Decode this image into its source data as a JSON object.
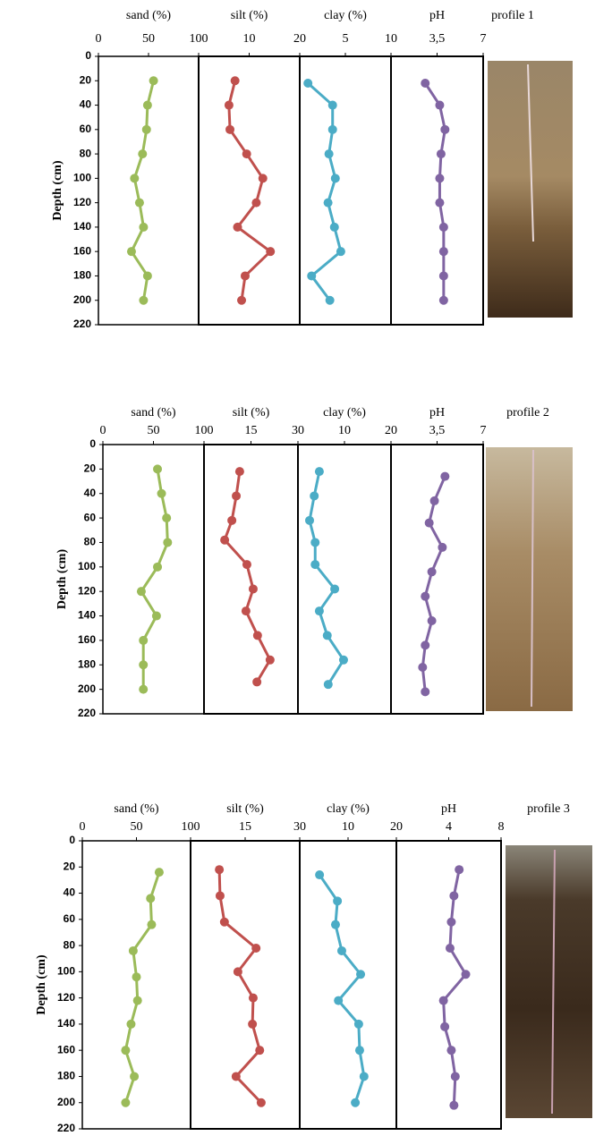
{
  "chart_data": [
    {
      "type": "line",
      "xlabel": "sand (%)",
      "ylabel": "Depth (cm)",
      "xlim": [
        0,
        100
      ],
      "xticks": [
        0,
        50,
        100
      ],
      "ylim": [
        0,
        220
      ],
      "yticks": [
        0,
        20,
        40,
        60,
        80,
        100,
        120,
        140,
        160,
        180,
        200,
        220
      ],
      "color": "#9bbb59",
      "y": [
        20,
        40,
        60,
        80,
        100,
        120,
        140,
        160,
        180,
        200
      ],
      "values": [
        55,
        49,
        48,
        44,
        36,
        41,
        45,
        33,
        49,
        45
      ]
    },
    {
      "type": "line",
      "xlabel": "silt (%)",
      "xlim": [
        0,
        20
      ],
      "xticks": [
        10,
        20
      ],
      "ylim": [
        0,
        220
      ],
      "color": "#c0504d",
      "y": [
        20,
        40,
        60,
        80,
        100,
        120,
        140,
        160,
        180,
        200
      ],
      "values": [
        7.2,
        6,
        6.2,
        9.5,
        12.7,
        11.4,
        7.7,
        14.2,
        9.2,
        8.5
      ]
    },
    {
      "type": "line",
      "xlabel": "clay (%)",
      "xlim": [
        0,
        10
      ],
      "xticks": [
        5,
        10
      ],
      "ylim": [
        0,
        220
      ],
      "color": "#4bacc6",
      "y": [
        22,
        40,
        60,
        80,
        100,
        120,
        140,
        160,
        180,
        200
      ],
      "values": [
        0.9,
        3.6,
        3.6,
        3.2,
        3.9,
        3.1,
        3.8,
        4.5,
        1.3,
        3.3
      ]
    },
    {
      "type": "line",
      "xlabel": "pH",
      "xlim": [
        0,
        7
      ],
      "xticks": [
        {
          "value": 3.5,
          "label": "3,5"
        },
        7
      ],
      "ylim": [
        0,
        220
      ],
      "color": "#8064a2",
      "y": [
        22,
        40,
        60,
        80,
        100,
        120,
        140,
        160,
        180,
        200
      ],
      "values": [
        2.6,
        3.7,
        4.1,
        3.8,
        3.7,
        3.7,
        4.0,
        4.0,
        4.0,
        4.0
      ]
    },
    {
      "type": "line",
      "xlabel": "sand (%)",
      "ylabel": "Depth (cm)",
      "xlim": [
        0,
        100
      ],
      "xticks": [
        0,
        50,
        100
      ],
      "ylim": [
        0,
        220
      ],
      "yticks": [
        0,
        20,
        40,
        60,
        80,
        100,
        120,
        140,
        160,
        180,
        200,
        220
      ],
      "color": "#9bbb59",
      "y": [
        20,
        40,
        60,
        80,
        100,
        120,
        140,
        160,
        180,
        200
      ],
      "values": [
        54,
        58,
        63,
        64,
        54,
        38,
        53,
        40,
        40,
        40
      ]
    },
    {
      "type": "line",
      "xlabel": "silt (%)",
      "xlim": [
        0,
        30
      ],
      "xticks": [
        15,
        30
      ],
      "ylim": [
        0,
        220
      ],
      "color": "#c0504d",
      "y": [
        22,
        42,
        62,
        78,
        98,
        118,
        136,
        156,
        176,
        194
      ],
      "values": [
        11.4,
        10.3,
        8.9,
        6.6,
        13.7,
        15.7,
        13.4,
        17.1,
        21.1,
        16.9
      ]
    },
    {
      "type": "line",
      "xlabel": "clay (%)",
      "xlim": [
        0,
        20
      ],
      "xticks": [
        10,
        20
      ],
      "ylim": [
        0,
        220
      ],
      "color": "#4bacc6",
      "y": [
        22,
        42,
        62,
        80,
        98,
        118,
        136,
        156,
        176,
        196
      ],
      "values": [
        4.6,
        3.5,
        2.5,
        3.7,
        3.7,
        7.9,
        4.6,
        6.3,
        9.8,
        6.5
      ]
    },
    {
      "type": "line",
      "xlabel": "pH",
      "xlim": [
        0,
        7
      ],
      "xticks": [
        {
          "value": 3.5,
          "label": "3,5"
        },
        7
      ],
      "ylim": [
        0,
        220
      ],
      "color": "#8064a2",
      "y": [
        26,
        46,
        64,
        84,
        104,
        124,
        144,
        164,
        182,
        202
      ],
      "values": [
        4.1,
        3.3,
        2.9,
        3.9,
        3.1,
        2.6,
        3.1,
        2.6,
        2.4,
        2.6
      ]
    },
    {
      "type": "line",
      "xlabel": "sand (%)",
      "ylabel": "Depth (cm)",
      "xlim": [
        0,
        100
      ],
      "xticks": [
        0,
        50,
        100
      ],
      "ylim": [
        0,
        220
      ],
      "yticks": [
        0,
        20,
        40,
        60,
        80,
        100,
        120,
        140,
        160,
        180,
        200,
        220
      ],
      "color": "#9bbb59",
      "y": [
        24,
        44,
        64,
        84,
        104,
        122,
        140,
        160,
        180,
        200
      ],
      "values": [
        71,
        63,
        64,
        47,
        50,
        51,
        45,
        40,
        48,
        40
      ]
    },
    {
      "type": "line",
      "xlabel": "silt (%)",
      "xlim": [
        0,
        30
      ],
      "xticks": [
        15,
        30
      ],
      "ylim": [
        0,
        220
      ],
      "color": "#c0504d",
      "y": [
        22,
        42,
        62,
        82,
        100,
        120,
        140,
        160,
        180,
        200
      ],
      "values": [
        7.9,
        8.1,
        9.3,
        18,
        13,
        17.2,
        17,
        19,
        12.5,
        19.4
      ]
    },
    {
      "type": "line",
      "xlabel": "clay (%)",
      "xlim": [
        0,
        20
      ],
      "xticks": [
        10,
        20
      ],
      "ylim": [
        0,
        220
      ],
      "color": "#4bacc6",
      "y": [
        26,
        46,
        64,
        84,
        102,
        122,
        140,
        160,
        180,
        200
      ],
      "values": [
        4.1,
        7.8,
        7.4,
        8.7,
        12.6,
        8,
        12.2,
        12.4,
        13.3,
        11.5
      ]
    },
    {
      "type": "line",
      "xlabel": "pH",
      "xlim": [
        0,
        8
      ],
      "xticks": [
        4,
        8
      ],
      "ylim": [
        0,
        220
      ],
      "color": "#8064a2",
      "y": [
        22,
        42,
        62,
        82,
        102,
        122,
        142,
        160,
        180,
        202
      ],
      "values": [
        4.8,
        4.4,
        4.2,
        4.1,
        5.3,
        3.6,
        3.7,
        4.2,
        4.5,
        4.4
      ]
    }
  ],
  "photo_labels": [
    "profile 1",
    "profile 2",
    "profile 3"
  ]
}
